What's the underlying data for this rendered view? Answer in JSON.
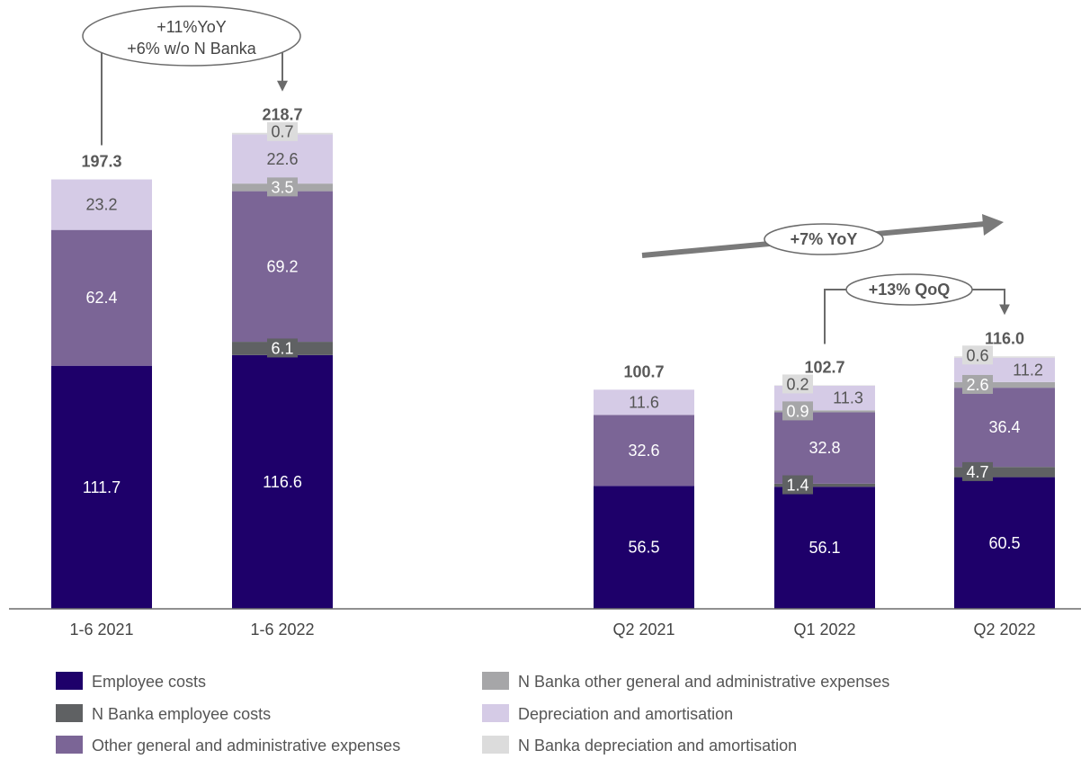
{
  "chart_data": {
    "type": "bar",
    "stacked": true,
    "categories": [
      "1-6 2021",
      "1-6 2022",
      "Q2 2021",
      "Q1 2022",
      "Q2 2022"
    ],
    "totals": [
      "197.3",
      "218.7",
      "100.7",
      "102.7",
      "116.0"
    ],
    "ylim": [
      0,
      230
    ],
    "grid": false,
    "legend_placement": "bottom",
    "series": [
      {
        "name": "Employee costs",
        "color": "#1e006a",
        "values": [
          111.7,
          116.6,
          56.5,
          56.1,
          60.5
        ]
      },
      {
        "name": "N Banka employee costs",
        "color": "#5f6163",
        "values": [
          0,
          6.1,
          0,
          1.4,
          4.7
        ]
      },
      {
        "name": "Other general and administrative expenses",
        "color": "#7b6596",
        "values": [
          62.4,
          69.2,
          32.6,
          32.8,
          36.4
        ]
      },
      {
        "name": "N Banka other general and administrative expenses",
        "color": "#a6a6a8",
        "values": [
          0,
          3.5,
          0,
          0.9,
          2.6
        ]
      },
      {
        "name": "Depreciation and amortisation",
        "color": "#d5cbe6",
        "values": [
          23.2,
          22.6,
          11.6,
          11.3,
          11.2
        ]
      },
      {
        "name": "N Banka depreciation and amortisation",
        "color": "#dcdcdc",
        "values": [
          0,
          0.7,
          0,
          0.2,
          0.6
        ]
      }
    ],
    "segment_labels": [
      [
        "111.7",
        "",
        "62.4",
        "",
        "23.2",
        ""
      ],
      [
        "116.6",
        "6.1",
        "69.2",
        "3.5",
        "22.6",
        "0.7"
      ],
      [
        "56.5",
        "",
        "32.6",
        "",
        "11.6",
        ""
      ],
      [
        "56.1",
        "1.4",
        "32.8",
        "0.9",
        "11.3",
        "0.2"
      ],
      [
        "60.5",
        "4.7",
        "36.4",
        "2.6",
        "11.2",
        "0.6"
      ]
    ],
    "annotations": [
      {
        "text": "+11%YoY",
        "text2": "+6% w/o N Banka",
        "from": 0,
        "to": 1
      },
      {
        "text": "+7% YoY"
      },
      {
        "text": "+13% QoQ",
        "from": 3,
        "to": 4
      }
    ]
  }
}
